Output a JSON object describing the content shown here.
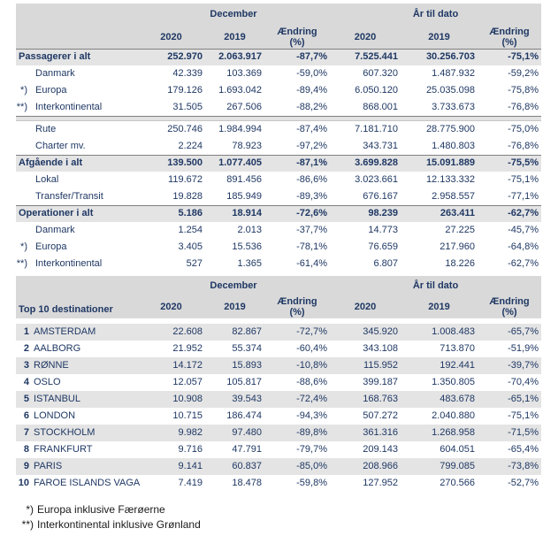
{
  "colors": {
    "header_bg": "#d9d9d9",
    "band_bg": "#e4e4e4",
    "text_navy": "#1f3864",
    "border_dark": "#808080",
    "footnote_text": "#1a1a1a"
  },
  "column_groups": {
    "december": "December",
    "ytd": "År til dato"
  },
  "sub_headers": [
    "2020",
    "2019",
    "Ændring\n(%)",
    "2020",
    "2019",
    "Ændring\n(%)"
  ],
  "traffic_table": {
    "rows": [
      {
        "type": "section",
        "marker": "",
        "label": "Passagerer i alt",
        "values": [
          "252.970",
          "2.063.917",
          "-87,7%",
          "7.525.441",
          "30.256.703",
          "-75,1%"
        ]
      },
      {
        "type": "sub",
        "marker": "",
        "label": "Danmark",
        "values": [
          "42.339",
          "103.369",
          "-59,0%",
          "607.320",
          "1.487.932",
          "-59,2%"
        ]
      },
      {
        "type": "sub",
        "marker": "*)",
        "label": "Europa",
        "values": [
          "179.126",
          "1.693.042",
          "-89,4%",
          "6.050.120",
          "25.035.098",
          "-75,8%"
        ]
      },
      {
        "type": "sub",
        "marker": "**)",
        "label": "Interkontinental",
        "values": [
          "31.505",
          "267.506",
          "-88,2%",
          "868.001",
          "3.733.673",
          "-76,8%"
        ]
      },
      {
        "type": "spacer"
      },
      {
        "type": "sub",
        "marker": "",
        "label": "Rute",
        "values": [
          "250.746",
          "1.984.994",
          "-87,4%",
          "7.181.710",
          "28.775.900",
          "-75,0%"
        ]
      },
      {
        "type": "sub",
        "marker": "",
        "label": "Charter mv.",
        "values": [
          "2.224",
          "78.923",
          "-97,2%",
          "343.731",
          "1.480.803",
          "-76,8%"
        ]
      },
      {
        "type": "section",
        "marker": "",
        "label": "Afgående i alt",
        "values": [
          "139.500",
          "1.077.405",
          "-87,1%",
          "3.699.828",
          "15.091.889",
          "-75,5%"
        ]
      },
      {
        "type": "sub",
        "marker": "",
        "label": "Lokal",
        "values": [
          "119.672",
          "891.456",
          "-86,6%",
          "3.023.661",
          "12.133.332",
          "-75,1%"
        ]
      },
      {
        "type": "sub",
        "marker": "",
        "label": "Transfer/Transit",
        "values": [
          "19.828",
          "185.949",
          "-89,3%",
          "676.167",
          "2.958.557",
          "-77,1%"
        ]
      },
      {
        "type": "section",
        "marker": "",
        "label": "Operationer i alt",
        "values": [
          "5.186",
          "18.914",
          "-72,6%",
          "98.239",
          "263.411",
          "-62,7%"
        ]
      },
      {
        "type": "sub",
        "marker": "",
        "label": "Danmark",
        "values": [
          "1.254",
          "2.013",
          "-37,7%",
          "14.773",
          "27.225",
          "-45,7%"
        ]
      },
      {
        "type": "sub",
        "marker": "*)",
        "label": "Europa",
        "values": [
          "3.405",
          "15.536",
          "-78,1%",
          "76.659",
          "217.960",
          "-64,8%"
        ]
      },
      {
        "type": "sub",
        "marker": "**)",
        "label": "Interkontinental",
        "values": [
          "527",
          "1.365",
          "-61,4%",
          "6.807",
          "18.226",
          "-62,7%"
        ]
      }
    ]
  },
  "destinations_table": {
    "title": "Top 10 destinationer",
    "rows": [
      {
        "rank": "1",
        "name": "AMSTERDAM",
        "values": [
          "22.608",
          "82.867",
          "-72,7%",
          "345.920",
          "1.008.483",
          "-65,7%"
        ]
      },
      {
        "rank": "2",
        "name": "AALBORG",
        "values": [
          "21.952",
          "55.374",
          "-60,4%",
          "343.108",
          "713.870",
          "-51,9%"
        ]
      },
      {
        "rank": "3",
        "name": "RØNNE",
        "values": [
          "14.172",
          "15.893",
          "-10,8%",
          "115.952",
          "192.441",
          "-39,7%"
        ]
      },
      {
        "rank": "4",
        "name": "OSLO",
        "values": [
          "12.057",
          "105.817",
          "-88,6%",
          "399.187",
          "1.350.805",
          "-70,4%"
        ]
      },
      {
        "rank": "5",
        "name": "ISTANBUL",
        "values": [
          "10.908",
          "39.543",
          "-72,4%",
          "168.763",
          "483.678",
          "-65,1%"
        ]
      },
      {
        "rank": "6",
        "name": "LONDON",
        "values": [
          "10.715",
          "186.474",
          "-94,3%",
          "507.272",
          "2.040.880",
          "-75,1%"
        ]
      },
      {
        "rank": "7",
        "name": "STOCKHOLM",
        "values": [
          "9.982",
          "97.480",
          "-89,8%",
          "361.316",
          "1.268.958",
          "-71,5%"
        ]
      },
      {
        "rank": "8",
        "name": "FRANKFURT",
        "values": [
          "9.716",
          "47.791",
          "-79,7%",
          "209.143",
          "604.051",
          "-65,4%"
        ]
      },
      {
        "rank": "9",
        "name": "PARIS",
        "values": [
          "9.141",
          "60.837",
          "-85,0%",
          "208.966",
          "799.085",
          "-73,8%"
        ]
      },
      {
        "rank": "10",
        "name": "FAROE ISLANDS VAGA",
        "values": [
          "7.419",
          "18.478",
          "-59,8%",
          "127.952",
          "270.566",
          "-52,7%"
        ]
      }
    ]
  },
  "footnotes": [
    {
      "marker": "*)",
      "text": "Europa inklusive Færøerne"
    },
    {
      "marker": "**)",
      "text": "Interkontinental inklusive Grønland"
    }
  ]
}
